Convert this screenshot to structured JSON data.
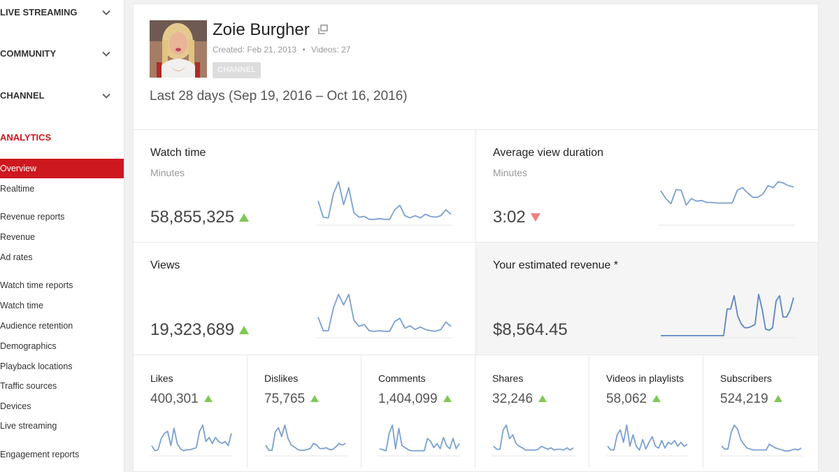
{
  "sidebar": {
    "sections": [
      {
        "label": "LIVE STREAMING"
      },
      {
        "label": "COMMUNITY"
      },
      {
        "label": "CHANNEL"
      }
    ],
    "analytics_label": "ANALYTICS",
    "overview": "Overview",
    "realtime": "Realtime",
    "revenue_reports": {
      "heading": "Revenue reports",
      "items": [
        "Revenue",
        "Ad rates"
      ]
    },
    "watch_time_reports": {
      "heading": "Watch time reports",
      "items": [
        "Watch time",
        "Audience retention",
        "Demographics",
        "Playback locations",
        "Traffic sources",
        "Devices",
        "Live streaming"
      ]
    },
    "engagement_reports": {
      "heading": "Engagement reports"
    }
  },
  "channel": {
    "name": "Zoie Burgher",
    "created": "Created: Feb 21, 2013",
    "separator": "•",
    "videos": "Videos: 27",
    "badge": "CHANNEL"
  },
  "date_range": "Last 28 days (Sep 19, 2016 – Oct 16, 2016)",
  "metrics": {
    "watch_time": {
      "title": "Watch time",
      "unit": "Minutes",
      "value": "58,855,325",
      "trend": "up",
      "spark": [
        30,
        8,
        7,
        40,
        56,
        25,
        48,
        14,
        8,
        9,
        5,
        5,
        6,
        5,
        5,
        18,
        24,
        10,
        7,
        10,
        7,
        12,
        9,
        8,
        10,
        18,
        12
      ]
    },
    "avg_view_duration": {
      "title": "Average view duration",
      "unit": "Minutes",
      "value": "3:02",
      "trend": "down",
      "spark": [
        50,
        38,
        30,
        52,
        51,
        28,
        38,
        34,
        35,
        32,
        32,
        31,
        31,
        31,
        31,
        51,
        55,
        47,
        40,
        40,
        45,
        58,
        55,
        64,
        62,
        58,
        56
      ]
    },
    "views": {
      "title": "Views",
      "unit": "",
      "value": "19,323,689",
      "trend": "up",
      "spark": [
        30,
        8,
        8,
        45,
        67,
        50,
        67,
        25,
        15,
        18,
        8,
        7,
        8,
        7,
        7,
        23,
        28,
        12,
        16,
        10,
        14,
        10,
        8,
        7,
        10,
        22,
        15
      ]
    },
    "est_revenue": {
      "title": "Your estimated revenue *",
      "unit": "",
      "value": "$8,564.45",
      "trend": "",
      "spark": [
        0,
        0,
        0,
        0,
        0,
        0,
        0,
        0,
        0,
        0,
        0,
        0,
        0,
        0,
        0,
        0,
        0,
        0,
        0,
        40,
        40,
        60,
        30,
        18,
        12,
        12,
        14,
        17,
        62,
        40,
        10,
        8,
        12,
        52,
        60,
        28,
        28,
        38,
        57
      ]
    }
  },
  "small_metrics": [
    {
      "title": "Likes",
      "value": "400,301",
      "trend": "up",
      "spark": [
        8,
        3,
        4,
        15,
        20,
        22,
        8,
        25,
        10,
        5,
        3,
        4,
        4,
        5,
        6,
        22,
        28,
        12,
        16,
        10,
        16,
        12,
        10,
        12,
        8,
        20
      ]
    },
    {
      "title": "Dislikes",
      "value": "75,765",
      "trend": "up",
      "spark": [
        10,
        4,
        4,
        25,
        30,
        20,
        33,
        18,
        10,
        8,
        5,
        4,
        4,
        5,
        6,
        12,
        10,
        6,
        6,
        7,
        5,
        5,
        8,
        12,
        10,
        12
      ]
    },
    {
      "title": "Comments",
      "value": "1,404,099",
      "trend": "up",
      "spark": [
        5,
        4,
        3,
        20,
        28,
        5,
        25,
        8,
        6,
        4,
        3,
        3,
        3,
        3,
        3,
        15,
        12,
        6,
        10,
        5,
        16,
        8,
        5,
        15,
        5,
        10
      ]
    },
    {
      "title": "Shares",
      "value": "32,246",
      "trend": "up",
      "spark": [
        10,
        6,
        6,
        32,
        38,
        20,
        25,
        14,
        10,
        8,
        5,
        5,
        5,
        5,
        6,
        10,
        8,
        6,
        8,
        5,
        6,
        6,
        5,
        8,
        5,
        8
      ]
    },
    {
      "title": "Videos in playlists",
      "value": "58,062",
      "trend": "up",
      "spark": [
        8,
        4,
        4,
        20,
        25,
        12,
        30,
        8,
        20,
        8,
        4,
        15,
        5,
        12,
        18,
        8,
        6,
        14,
        6,
        12,
        10,
        14,
        8,
        12,
        8,
        10
      ]
    },
    {
      "title": "Subscribers",
      "value": "524,219",
      "trend": "up",
      "spark": [
        8,
        5,
        5,
        22,
        30,
        26,
        15,
        10,
        6,
        5,
        4,
        4,
        4,
        4,
        4,
        10,
        8,
        6,
        5,
        4,
        3,
        3,
        4,
        5,
        4,
        6
      ]
    }
  ],
  "colors": {
    "accent": "#cc181e",
    "spark": "#7ba0d0",
    "spark_rev": "#5b86c4",
    "up": "#7ec856",
    "down": "#f08080"
  }
}
